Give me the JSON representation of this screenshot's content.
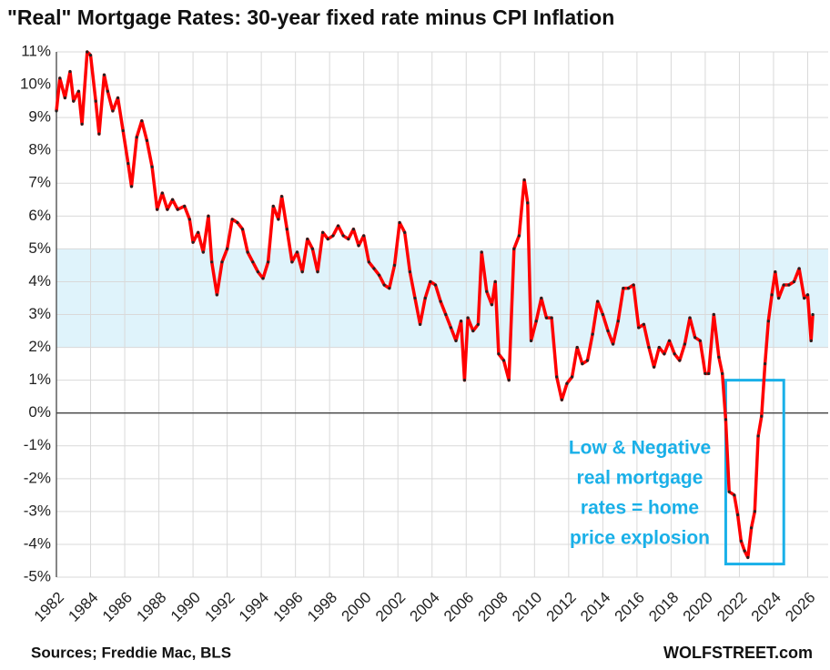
{
  "chart_data": {
    "type": "line",
    "title": "\"Real\" Mortgage Rates: 30-year fixed rate minus CPI Inflation",
    "source": "Sources; Freddie Mac, BLS",
    "credit": "WOLFSTREET.com",
    "annotation": {
      "lines": [
        "Low & Negative",
        "real mortgage",
        "rates = home",
        "price explosion"
      ],
      "box_x": [
        2021.2,
        2024.6
      ],
      "box_y": [
        -4.6,
        1
      ]
    },
    "band": [
      2,
      5
    ],
    "band_color": "#dff3fb",
    "color": "#ff0000",
    "marker_color": "#222222",
    "grid": true,
    "xlim": [
      1982,
      2027.2
    ],
    "ylim": [
      -5,
      11
    ],
    "xticks": [
      1982,
      1984,
      1986,
      1988,
      1990,
      1992,
      1994,
      1996,
      1998,
      2000,
      2002,
      2004,
      2006,
      2008,
      2010,
      2012,
      2014,
      2016,
      2018,
      2020,
      2022,
      2024,
      2026
    ],
    "yticks": [
      {
        "value": -5,
        "label": "-5%"
      },
      {
        "value": -4,
        "label": "-4%"
      },
      {
        "value": -3,
        "label": "-3%"
      },
      {
        "value": -2,
        "label": "-2%"
      },
      {
        "value": -1,
        "label": "-1%"
      },
      {
        "value": 0,
        "label": "0%"
      },
      {
        "value": 1,
        "label": "1%"
      },
      {
        "value": 2,
        "label": "2%"
      },
      {
        "value": 3,
        "label": "3%"
      },
      {
        "value": 4,
        "label": "4%"
      },
      {
        "value": 5,
        "label": "5%"
      },
      {
        "value": 6,
        "label": "6%"
      },
      {
        "value": 7,
        "label": "7%"
      },
      {
        "value": 8,
        "label": "8%"
      },
      {
        "value": 9,
        "label": "9%"
      },
      {
        "value": 10,
        "label": "10%"
      },
      {
        "value": 11,
        "label": "11%"
      }
    ],
    "x": [
      1982.0,
      1982.2,
      1982.5,
      1982.8,
      1983.0,
      1983.3,
      1983.5,
      1983.8,
      1984.0,
      1984.3,
      1984.5,
      1984.8,
      1985.0,
      1985.3,
      1985.6,
      1985.9,
      1986.2,
      1986.4,
      1986.7,
      1987.0,
      1987.3,
      1987.6,
      1987.9,
      1988.2,
      1988.5,
      1988.8,
      1989.1,
      1989.5,
      1989.8,
      1990.0,
      1990.3,
      1990.6,
      1990.9,
      1991.1,
      1991.4,
      1991.7,
      1992.0,
      1992.3,
      1992.6,
      1992.9,
      1993.2,
      1993.5,
      1993.8,
      1994.1,
      1994.4,
      1994.7,
      1995.0,
      1995.2,
      1995.5,
      1995.8,
      1996.1,
      1996.4,
      1996.7,
      1997.0,
      1997.3,
      1997.6,
      1997.9,
      1998.2,
      1998.5,
      1998.8,
      1999.1,
      1999.4,
      1999.7,
      2000.0,
      2000.3,
      2000.6,
      2000.9,
      2001.2,
      2001.5,
      2001.8,
      2002.1,
      2002.4,
      2002.7,
      2003.0,
      2003.3,
      2003.6,
      2003.9,
      2004.2,
      2004.5,
      2004.8,
      2005.1,
      2005.4,
      2005.7,
      2005.9,
      2006.1,
      2006.4,
      2006.7,
      2006.9,
      2007.2,
      2007.5,
      2007.7,
      2007.9,
      2008.2,
      2008.5,
      2008.8,
      2009.1,
      2009.4,
      2009.6,
      2009.8,
      2010.1,
      2010.4,
      2010.7,
      2011.0,
      2011.3,
      2011.6,
      2011.9,
      2012.2,
      2012.5,
      2012.8,
      2013.1,
      2013.4,
      2013.7,
      2014.0,
      2014.3,
      2014.6,
      2014.9,
      2015.2,
      2015.5,
      2015.8,
      2016.1,
      2016.4,
      2016.7,
      2017.0,
      2017.3,
      2017.6,
      2017.9,
      2018.2,
      2018.5,
      2018.8,
      2019.1,
      2019.4,
      2019.7,
      2020.0,
      2020.2,
      2020.5,
      2020.8,
      2021.0,
      2021.2,
      2021.4,
      2021.7,
      2021.9,
      2022.1,
      2022.3,
      2022.5,
      2022.7,
      2022.9,
      2023.1,
      2023.3,
      2023.5,
      2023.7,
      2023.9,
      2024.1,
      2024.3,
      2024.6,
      2024.9,
      2025.2,
      2025.5,
      2025.8,
      2026.0,
      2026.2,
      2026.3
    ],
    "values": [
      9.2,
      10.2,
      9.6,
      10.4,
      9.5,
      9.8,
      8.8,
      11.0,
      10.9,
      9.5,
      8.5,
      10.3,
      9.8,
      9.2,
      9.6,
      8.6,
      7.6,
      6.9,
      8.4,
      8.9,
      8.3,
      7.5,
      6.2,
      6.7,
      6.2,
      6.5,
      6.2,
      6.3,
      5.9,
      5.2,
      5.5,
      4.9,
      6.0,
      4.6,
      3.6,
      4.6,
      5.0,
      5.9,
      5.8,
      5.6,
      4.9,
      4.6,
      4.3,
      4.1,
      4.6,
      6.3,
      5.9,
      6.6,
      5.6,
      4.6,
      4.9,
      4.3,
      5.3,
      5.0,
      4.3,
      5.5,
      5.3,
      5.4,
      5.7,
      5.4,
      5.3,
      5.6,
      5.1,
      5.4,
      4.6,
      4.4,
      4.2,
      3.9,
      3.8,
      4.5,
      5.8,
      5.5,
      4.3,
      3.5,
      2.7,
      3.5,
      4.0,
      3.9,
      3.4,
      3.0,
      2.6,
      2.2,
      2.8,
      1.0,
      2.9,
      2.5,
      2.7,
      4.9,
      3.7,
      3.3,
      4.0,
      1.8,
      1.6,
      1.0,
      5.0,
      5.4,
      7.1,
      6.4,
      2.2,
      2.8,
      3.5,
      2.9,
      2.9,
      1.1,
      0.4,
      0.9,
      1.1,
      2.0,
      1.5,
      1.6,
      2.4,
      3.4,
      3.0,
      2.5,
      2.1,
      2.8,
      3.8,
      3.8,
      3.9,
      2.6,
      2.7,
      2.0,
      1.4,
      2.0,
      1.8,
      2.2,
      1.8,
      1.6,
      2.1,
      2.9,
      2.3,
      2.2,
      1.2,
      1.2,
      3.0,
      1.7,
      1.2,
      -0.2,
      -2.4,
      -2.5,
      -3.1,
      -3.9,
      -4.2,
      -4.4,
      -3.5,
      -3.0,
      -0.7,
      -0.1,
      1.5,
      2.8,
      3.6,
      4.3,
      3.5,
      3.9,
      3.9,
      4.0,
      4.4,
      3.5,
      3.6,
      2.2,
      3.0
    ]
  }
}
